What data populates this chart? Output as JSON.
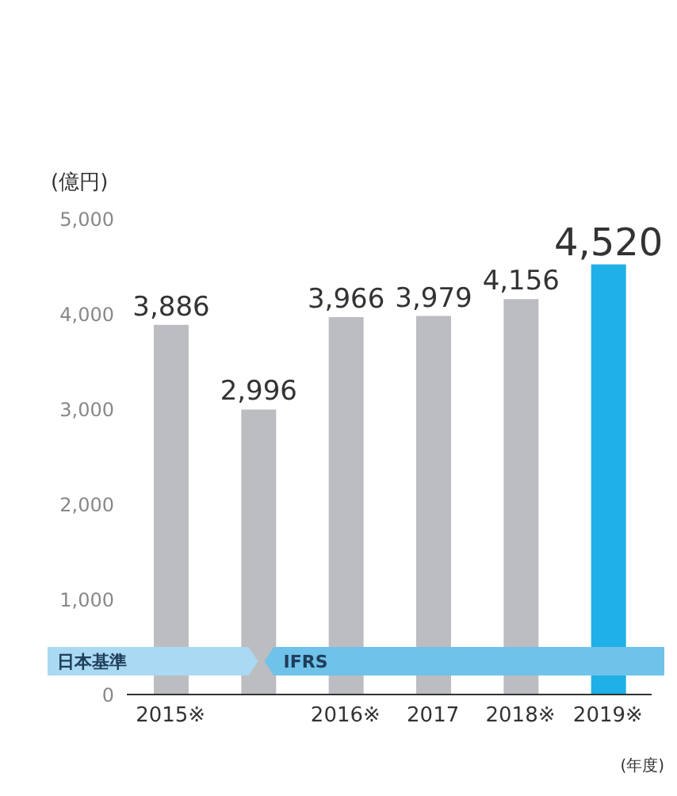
{
  "chart_data": {
    "type": "bar",
    "ylabel": "(億円)",
    "xlabel": "(年度)",
    "categories": [
      "2015※",
      null,
      "2016※",
      "2017",
      "2018※",
      "2019※"
    ],
    "values": [
      3886,
      2996,
      3966,
      3979,
      4156,
      4520
    ],
    "colors": [
      "#bcbdc1",
      "#bcbdc1",
      "#bcbdc1",
      "#bcbdc1",
      "#bcbdc1",
      "#1eb0e6"
    ],
    "value_labels": [
      "3,886",
      "2,996",
      "3,966",
      "3,979",
      "4,156",
      "4,520"
    ],
    "ylim": [
      0,
      5000
    ],
    "yticks": [
      0,
      {
        "value": 1000,
        "label": "1,000"
      },
      {
        "value": 2000,
        "label": "2,000"
      },
      {
        "value": 3000,
        "label": "3,000"
      },
      {
        "value": 4000,
        "label": "4,000"
      },
      {
        "value": 5000,
        "label": "5,000"
      }
    ],
    "annotations": [
      "日本基準",
      "IFRS"
    ]
  }
}
